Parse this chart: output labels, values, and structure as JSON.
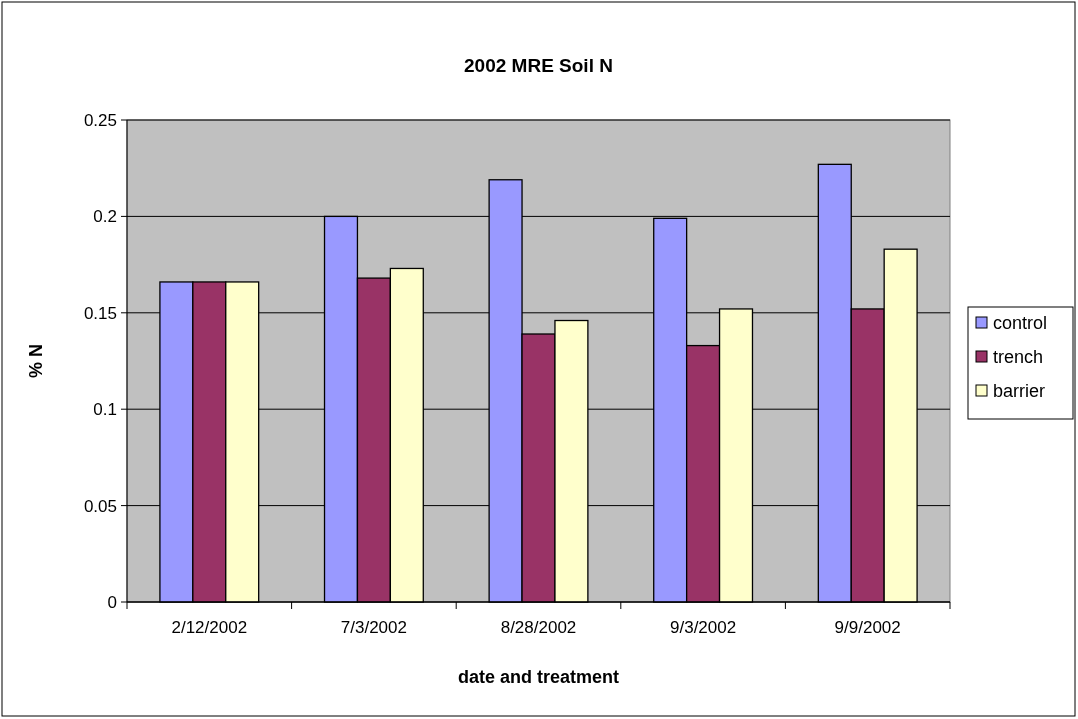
{
  "chart_data": {
    "type": "bar",
    "title": "2002 MRE Soil N",
    "xlabel": "date and treatment",
    "ylabel": "% N",
    "categories": [
      "2/12/2002",
      "7/3/2002",
      "8/28/2002",
      "9/3/2002",
      "9/9/2002"
    ],
    "series": [
      {
        "name": "control",
        "color": "#9999ff",
        "values": [
          0.166,
          0.2,
          0.219,
          0.199,
          0.227
        ]
      },
      {
        "name": "trench",
        "color": "#993366",
        "values": [
          0.166,
          0.168,
          0.139,
          0.133,
          0.152
        ]
      },
      {
        "name": "barrier",
        "color": "#ffffcc",
        "values": [
          0.166,
          0.173,
          0.146,
          0.152,
          0.183
        ]
      }
    ],
    "ylim": [
      0,
      0.25
    ],
    "yticks": [
      0,
      0.05,
      0.1,
      0.15,
      0.2,
      0.25
    ],
    "grid": "y",
    "legend": "right"
  }
}
